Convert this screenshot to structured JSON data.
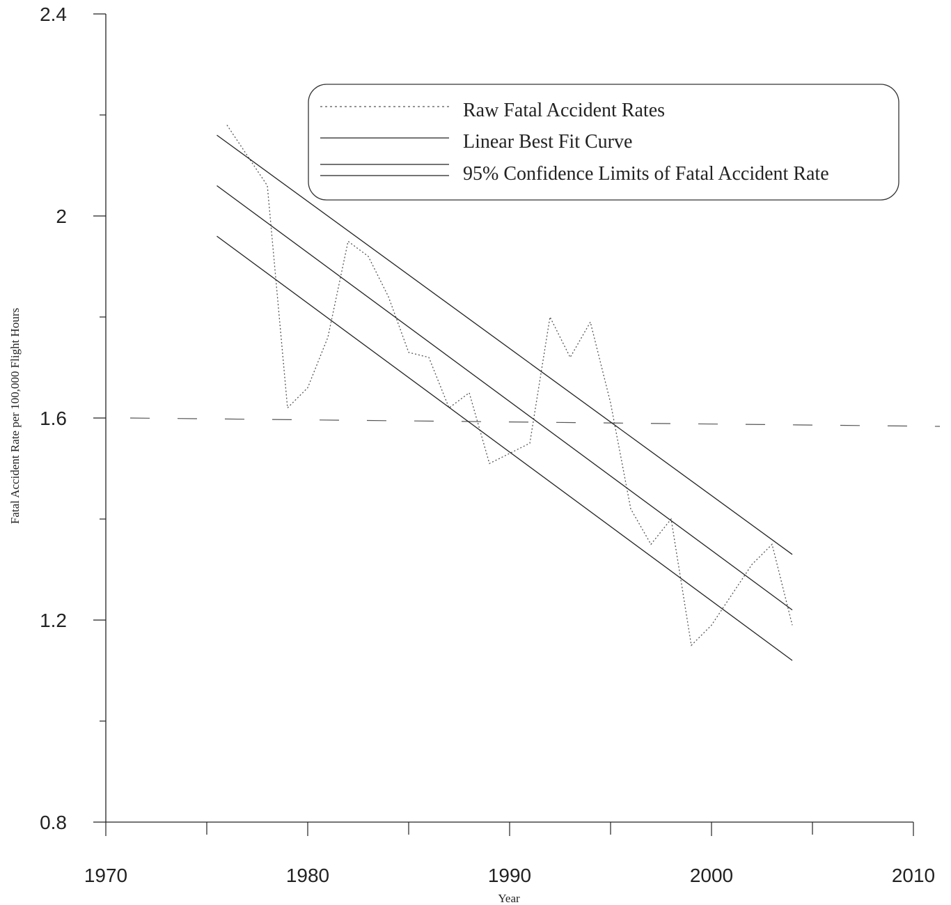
{
  "chart_data": {
    "type": "line",
    "title": "",
    "xlabel": "Year",
    "ylabel": "Fatal Accident Rate per 100,000 Flight Hours",
    "xlim": [
      1970,
      2010
    ],
    "ylim": [
      0.8,
      2.4
    ],
    "x_ticks": [
      1970,
      1980,
      1990,
      2000,
      2010
    ],
    "x_tick_labels": [
      "1970",
      "1980",
      "1990",
      "2000",
      "2010"
    ],
    "x_minor_ticks": [
      1975,
      1985,
      1995,
      2005
    ],
    "y_ticks": [
      0.8,
      1.2,
      1.6,
      2.0,
      2.4
    ],
    "y_tick_labels": [
      "0.8",
      "1.2",
      "1.6",
      "2",
      "2.4"
    ],
    "y_minor_ticks": [
      1.0,
      1.4,
      1.8,
      2.2
    ],
    "grid": false,
    "legend_position": "top-right",
    "reference_line": {
      "y": 1.6,
      "style": "dashed"
    },
    "series": [
      {
        "name": "Raw Fatal Accident Rates",
        "style": "dotted",
        "x": [
          1976,
          1977,
          1978,
          1979,
          1980,
          1981,
          1982,
          1983,
          1984,
          1985,
          1986,
          1987,
          1988,
          1989,
          1990,
          1991,
          1992,
          1993,
          1994,
          1995,
          1996,
          1997,
          1998,
          1999,
          2000,
          2001,
          2002,
          2003,
          2004
        ],
        "y": [
          2.18,
          2.12,
          2.06,
          1.62,
          1.66,
          1.76,
          1.95,
          1.92,
          1.84,
          1.73,
          1.72,
          1.62,
          1.65,
          1.51,
          1.53,
          1.55,
          1.8,
          1.72,
          1.79,
          1.63,
          1.42,
          1.35,
          1.4,
          1.15,
          1.19,
          1.25,
          1.31,
          1.35,
          1.19
        ]
      },
      {
        "name": "Linear Best Fit Curve",
        "style": "solid",
        "x": [
          1975.5,
          2004
        ],
        "y": [
          2.06,
          1.22
        ]
      },
      {
        "name": "95% Confidence Limits of Fatal Accident Rate",
        "style": "solid",
        "x": [
          1975.5,
          2004
        ],
        "y": [
          2.16,
          1.33
        ]
      },
      {
        "name": "95% Confidence Limits of Fatal Accident Rate",
        "style": "solid",
        "x": [
          1975.5,
          2004
        ],
        "y": [
          1.96,
          1.12
        ]
      }
    ]
  },
  "legend": {
    "items": [
      "Raw Fatal Accident Rates",
      "Linear Best Fit Curve",
      "95% Confidence Limits of Fatal Accident Rate"
    ]
  }
}
